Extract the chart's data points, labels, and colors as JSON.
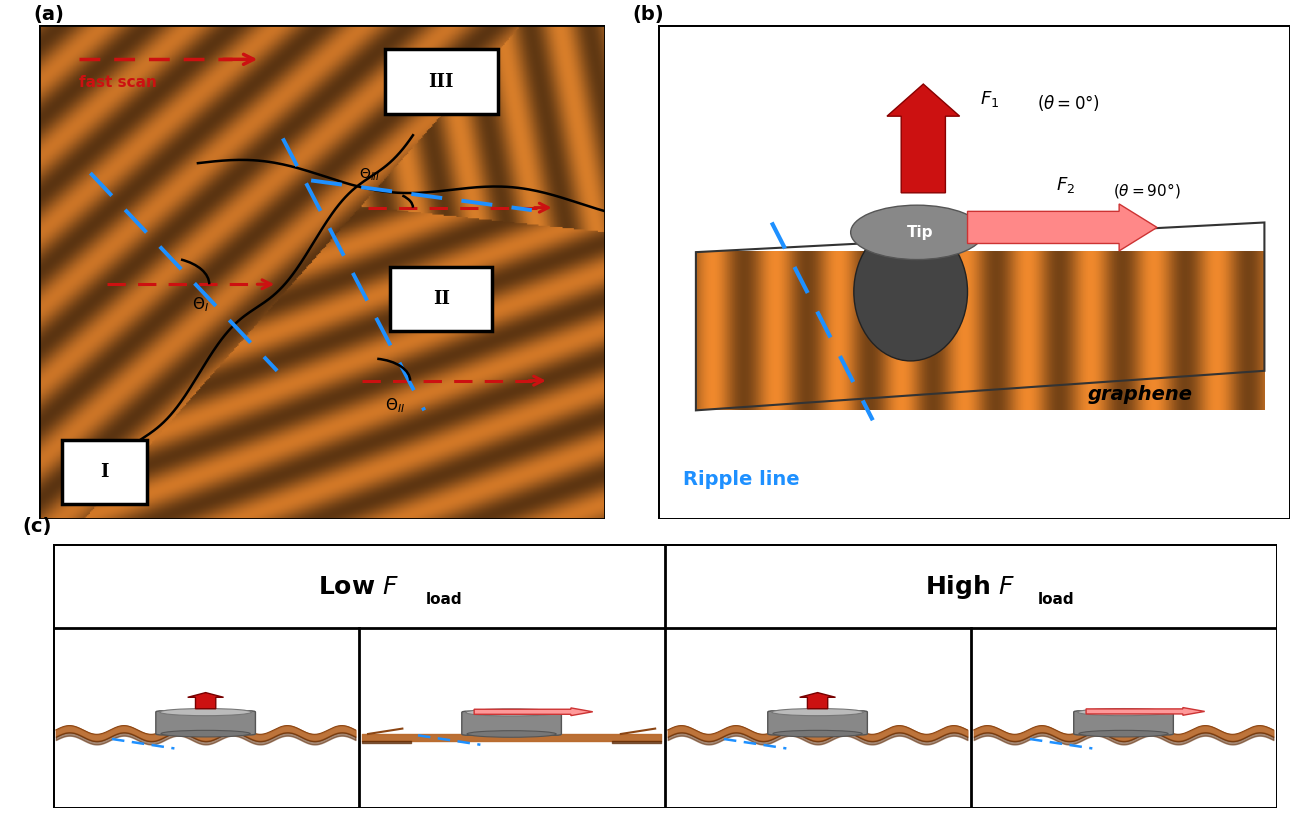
{
  "panel_a_label": "(a)",
  "panel_b_label": "(b)",
  "panel_c_label": "(c)",
  "fast_scan_label": "fast scan",
  "ripple_line_label": "Ripple line",
  "graphene_label": "graphene",
  "tip_label": "Tip",
  "bg_color_a": "#F5D9B0",
  "brown_dark": "#6B3000",
  "brown_mid": "#B8682A",
  "brown_light": "#E0A060",
  "red_arrow": "#CC1111",
  "red_arrow_light": "#FF9999",
  "blue_dashed": "#1E90FF",
  "gray_tip_dark": "#444444",
  "gray_tip_mid": "#888888",
  "gray_tip_light": "#BBBBBB",
  "low_fload": "Low ",
  "high_fload": "High ",
  "fload_italic": "F",
  "fload_sub": "load",
  "domain_I": "I",
  "domain_II": "II",
  "domain_III": "III"
}
